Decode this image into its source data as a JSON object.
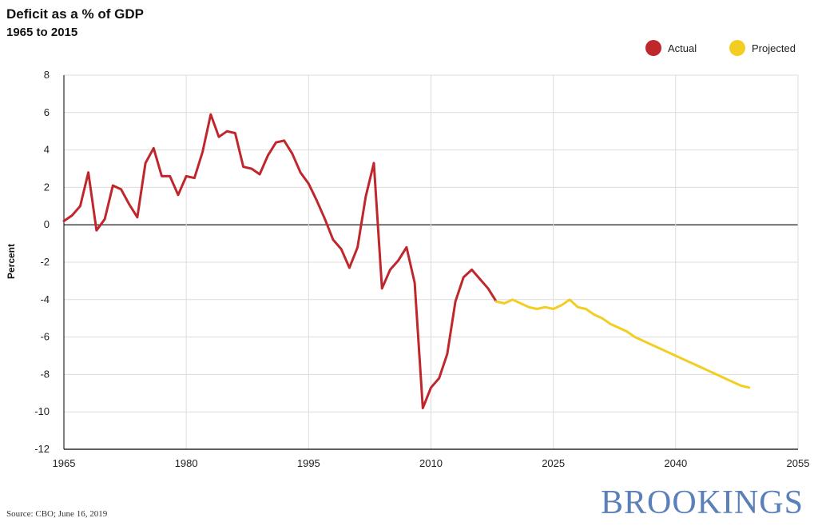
{
  "chart_data": {
    "type": "line",
    "title": "Deficit as a % of GDP",
    "subtitle": "1965 to 2015",
    "xlabel": "",
    "ylabel": "Percent",
    "xlim": [
      1965,
      2055
    ],
    "ylim": [
      -12,
      8
    ],
    "x_ticks": [
      1965,
      1980,
      1995,
      2010,
      2025,
      2040,
      2055
    ],
    "y_ticks": [
      8,
      6,
      4,
      2,
      0,
      -2,
      -4,
      -6,
      -8,
      -10,
      -12
    ],
    "grid": true,
    "legend_position": "top-right",
    "series": [
      {
        "name": "Actual",
        "color": "#c0272d",
        "x": [
          1965,
          1966,
          1967,
          1968,
          1969,
          1970,
          1971,
          1972,
          1973,
          1974,
          1975,
          1976,
          1977,
          1978,
          1979,
          1980,
          1981,
          1982,
          1983,
          1984,
          1985,
          1986,
          1987,
          1988,
          1989,
          1990,
          1991,
          1992,
          1993,
          1994,
          1995,
          1996,
          1997,
          1998,
          1999,
          2000,
          2001,
          2002,
          2003,
          2004,
          2005,
          2006,
          2007,
          2008,
          2009,
          2010,
          2011,
          2012,
          2013,
          2014,
          2015,
          2016,
          2017,
          2018
        ],
        "values": [
          0.2,
          0.5,
          1.0,
          2.8,
          -0.3,
          0.3,
          2.1,
          1.9,
          1.1,
          0.4,
          3.3,
          4.1,
          2.6,
          2.6,
          1.6,
          2.6,
          2.5,
          3.9,
          5.9,
          4.7,
          5.0,
          4.9,
          3.1,
          3.0,
          2.7,
          3.7,
          4.4,
          4.5,
          3.8,
          2.8,
          2.2,
          1.3,
          0.3,
          -0.8,
          -1.3,
          -2.3,
          -1.2,
          1.5,
          3.3,
          -3.4,
          -2.4,
          -1.9,
          -1.2,
          -3.1,
          -9.8,
          -8.7,
          -8.2,
          -6.9,
          -4.1,
          -2.8,
          -2.4,
          -2.9,
          -3.4,
          -4.1
        ]
      },
      {
        "name": "Projected",
        "color": "#f2cd22",
        "x": [
          2018,
          2019,
          2020,
          2021,
          2022,
          2023,
          2024,
          2025,
          2026,
          2027,
          2028,
          2029,
          2030,
          2031,
          2032,
          2033,
          2034,
          2035,
          2036,
          2037,
          2038,
          2039,
          2040,
          2041,
          2042,
          2043,
          2044,
          2045,
          2046,
          2047,
          2048,
          2049
        ],
        "values": [
          -4.1,
          -4.2,
          -4.0,
          -4.2,
          -4.4,
          -4.5,
          -4.4,
          -4.5,
          -4.3,
          -4.0,
          -4.4,
          -4.5,
          -4.8,
          -5.0,
          -5.3,
          -5.5,
          -5.7,
          -6.0,
          -6.2,
          -6.4,
          -6.6,
          -6.8,
          -7.0,
          -7.2,
          -7.4,
          -7.6,
          -7.8,
          -8.0,
          -8.2,
          -8.4,
          -8.6,
          -8.7
        ]
      }
    ]
  },
  "footer": {
    "source": "Source: CBO; June 16, 2019",
    "brand": "BROOKINGS"
  }
}
